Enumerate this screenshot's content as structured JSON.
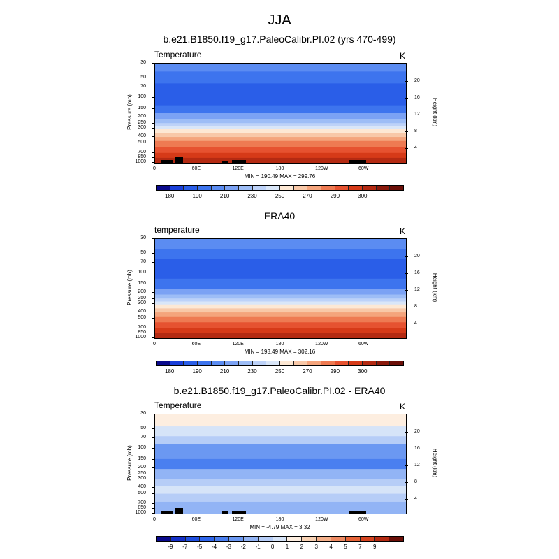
{
  "main_title": "JJA",
  "chart_data": [
    {
      "type": "heatmap",
      "title": "b.e21.B1850.f19_g17.PaleoCalibr.PI.02 (yrs 470-499)",
      "variable": "Temperature",
      "units": "K",
      "x_ticks": [
        "0",
        "60E",
        "120E",
        "180",
        "120W",
        "60W"
      ],
      "y_left_title": "Pressure (mb)",
      "y_left_ticks": [
        "30",
        "50",
        "70",
        "100",
        "150",
        "200",
        "250",
        "300",
        "400",
        "500",
        "700",
        "850",
        "1000"
      ],
      "y_right_title": "Height (km)",
      "y_right_ticks": [
        "20",
        "16",
        "12",
        "8",
        "4"
      ],
      "stats": "MIN = 190.49  MAX = 299.76",
      "colorbar_labels": [
        "180",
        "190",
        "210",
        "230",
        "250",
        "270",
        "290",
        "300"
      ],
      "colorbar_colors": [
        "#0a0a8c",
        "#1a3fd9",
        "#2a5ee8",
        "#3d74ee",
        "#5b8cf2",
        "#7ba2f4",
        "#9dbdf6",
        "#bdd2f8",
        "#d9e6f8",
        "#fde8d4",
        "#f8c8a8",
        "#f4a47c",
        "#ee7a52",
        "#e65230",
        "#d63a18",
        "#b42a12",
        "#8a1a0c",
        "#6b0f08"
      ]
    },
    {
      "type": "heatmap",
      "title": "ERA40",
      "variable": "temperature",
      "units": "K",
      "x_ticks": [
        "0",
        "60E",
        "120E",
        "180",
        "120W",
        "60W"
      ],
      "y_left_title": "Pressure (mb)",
      "y_left_ticks": [
        "30",
        "50",
        "70",
        "100",
        "150",
        "200",
        "250",
        "300",
        "400",
        "500",
        "700",
        "850",
        "1000"
      ],
      "y_right_title": "Height (km)",
      "y_right_ticks": [
        "20",
        "16",
        "12",
        "8",
        "4"
      ],
      "stats": "MIN = 193.49  MAX = 302.16",
      "colorbar_labels": [
        "180",
        "190",
        "210",
        "230",
        "250",
        "270",
        "290",
        "300"
      ],
      "colorbar_colors": [
        "#0a0a8c",
        "#1a3fd9",
        "#2a5ee8",
        "#3d74ee",
        "#5b8cf2",
        "#7ba2f4",
        "#9dbdf6",
        "#bdd2f8",
        "#d9e6f8",
        "#fde8d4",
        "#f8c8a8",
        "#f4a47c",
        "#ee7a52",
        "#e65230",
        "#d63a18",
        "#b42a12",
        "#8a1a0c",
        "#6b0f08"
      ]
    },
    {
      "type": "heatmap",
      "title": "b.e21.B1850.f19_g17.PaleoCalibr.PI.02 - ERA40",
      "variable": "Temperature",
      "units": "K",
      "x_ticks": [
        "0",
        "60E",
        "120E",
        "180",
        "120W",
        "60W"
      ],
      "y_left_title": "Pressure (mb)",
      "y_left_ticks": [
        "30",
        "50",
        "70",
        "100",
        "150",
        "200",
        "250",
        "300",
        "400",
        "500",
        "700",
        "850",
        "1000"
      ],
      "y_right_title": "Height (km)",
      "y_right_ticks": [
        "20",
        "16",
        "12",
        "8",
        "4"
      ],
      "stats": "MIN =  -4.79  MAX =  3.32",
      "colorbar_labels": [
        "-9",
        "-7",
        "-5",
        "-4",
        "-3",
        "-2",
        "-1",
        "0",
        "1",
        "2",
        "3",
        "4",
        "5",
        "7",
        "9"
      ],
      "colorbar_colors": [
        "#0a0a8c",
        "#1530c8",
        "#1f4fe0",
        "#2f66ec",
        "#4a7ff0",
        "#6b98f2",
        "#92b4f5",
        "#b6cdf7",
        "#d6e4f8",
        "#fdeee0",
        "#f8d2b4",
        "#f4b08a",
        "#ee8a62",
        "#e66438",
        "#d64420",
        "#b42a12",
        "#6b0f08"
      ]
    }
  ]
}
